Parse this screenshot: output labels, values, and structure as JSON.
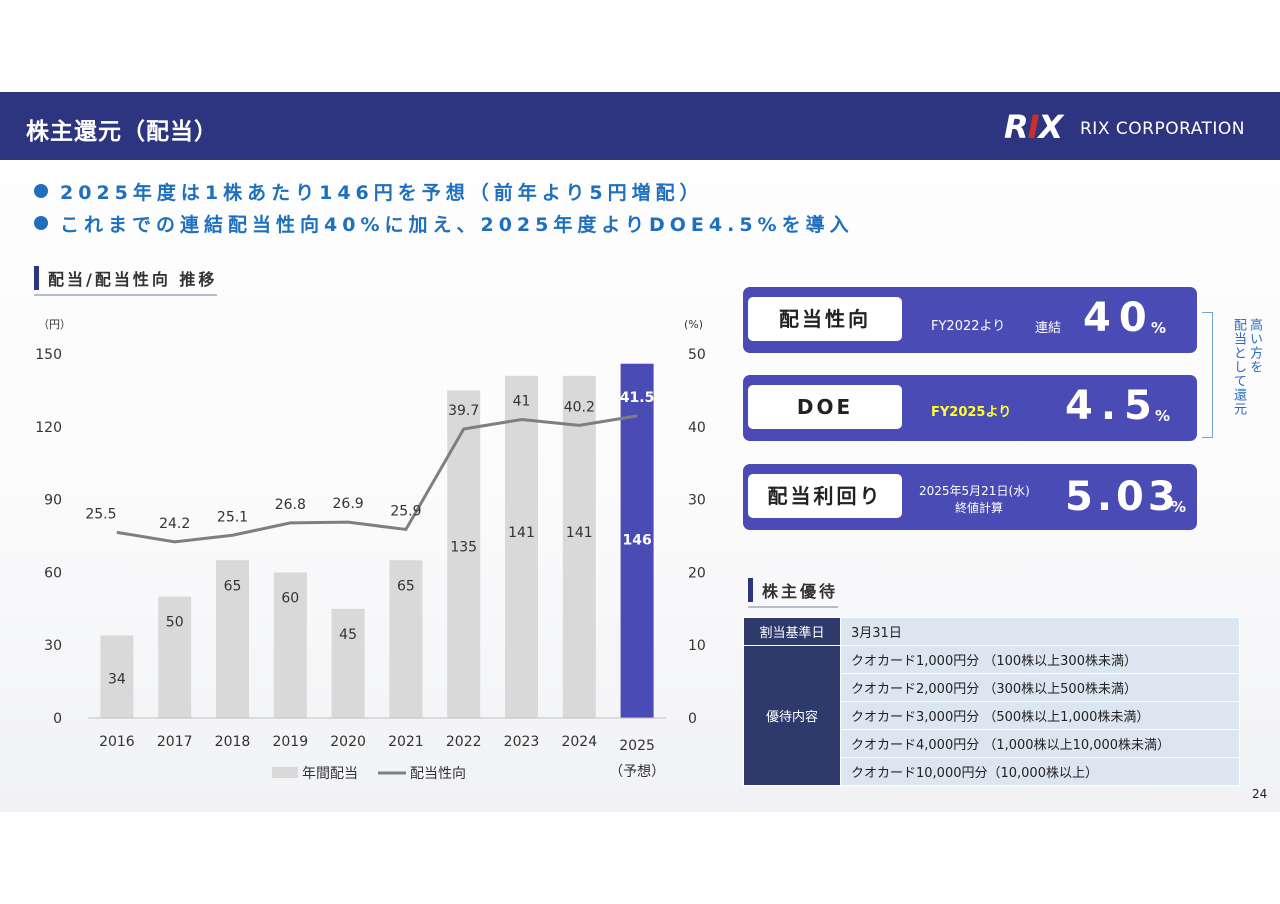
{
  "header": {
    "title": "株主還元（配当）",
    "logo_mark_left": "R",
    "logo_mark_accent": "I",
    "logo_mark_right": "X",
    "logo_text": "RIX CORPORATION"
  },
  "bullets": [
    "2025年度は1株あたり146円を予想（前年より5円増配）",
    "これまでの連結配当性向40%に加え、2025年度よりDOE4.5%を導入"
  ],
  "sections": {
    "chart_title": "配当/配当性向 推移",
    "perk_title": "株主優待"
  },
  "chart_data": {
    "type": "bar",
    "categories": [
      "2016",
      "2017",
      "2018",
      "2019",
      "2020",
      "2021",
      "2022",
      "2023",
      "2024",
      "2025"
    ],
    "category_sublabel": "（予想）",
    "left_unit": "（円）",
    "right_unit": "(%)",
    "ylim": [
      0,
      150
    ],
    "yticks": [
      0,
      30,
      60,
      90,
      120,
      150
    ],
    "y2lim": [
      0,
      50
    ],
    "y2ticks": [
      0,
      10,
      20,
      30,
      40,
      50
    ],
    "series": [
      {
        "name": "年間配当",
        "type": "bar",
        "axis": "left",
        "values": [
          34,
          50,
          65,
          60,
          45,
          65,
          135,
          141,
          141,
          146
        ],
        "color": "#d9d9d9",
        "highlight_color": "#4a4bb5",
        "highlight_index": 9
      },
      {
        "name": "配当性向",
        "type": "line",
        "axis": "right",
        "values": [
          25.5,
          24.2,
          25.1,
          26.8,
          26.9,
          25.9,
          39.7,
          41,
          40.2,
          41.5
        ],
        "color": "#7f7f7f"
      }
    ],
    "legend": "bottom"
  },
  "kpis": [
    {
      "label": "配当性向",
      "note": "FY2022より",
      "note2": "連結",
      "value": "40",
      "unit": "%"
    },
    {
      "label": "DOE",
      "note": "FY2025より",
      "value": "4.5",
      "unit": "%",
      "note_color": "#ffff33"
    },
    {
      "label": "配当利回り",
      "note": "2025年5月21日(水)",
      "note2": "終値計算",
      "value": "5.03",
      "unit": "%"
    }
  ],
  "side_note": {
    "col1": "配当として還元",
    "col2": "高い方を"
  },
  "perk_table": {
    "record_date_label": "割当基準日",
    "record_date": "3月31日",
    "content_label": "優待内容",
    "items": [
      "クオカード1,000円分 （100株以上300株未満）",
      "クオカード2,000円分 （300株以上500株未満）",
      "クオカード3,000円分 （500株以上1,000株未満）",
      "クオカード4,000円分 （1,000株以上10,000株未満）",
      "クオカード10,000円分（10,000株以上）"
    ]
  },
  "page_number": "24"
}
